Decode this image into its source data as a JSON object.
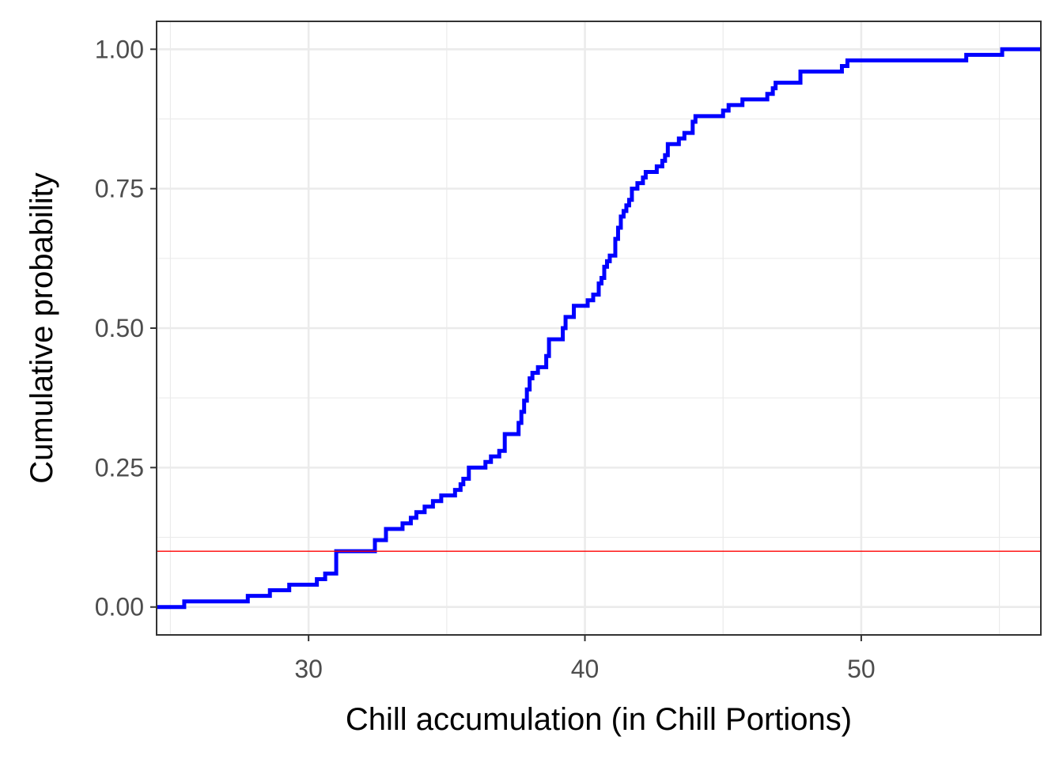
{
  "chart_data": {
    "type": "line",
    "subtype": "empirical-cdf-step",
    "title": "",
    "xlabel": "Chill accumulation (in Chill Portions)",
    "ylabel": "Cumulative probability",
    "xlim": [
      24.5,
      56.5
    ],
    "ylim": [
      -0.05,
      1.05
    ],
    "x_ticks": [
      30,
      40,
      50
    ],
    "x_tick_labels": [
      "30",
      "40",
      "50"
    ],
    "y_ticks": [
      0,
      0.25,
      0.5,
      0.75,
      1.0
    ],
    "y_tick_labels": [
      "0.00",
      "0.25",
      "0.50",
      "0.75",
      "1.00"
    ],
    "x_minor_ticks": [
      25,
      35,
      45,
      55
    ],
    "y_minor_ticks": [
      0.125,
      0.375,
      0.625,
      0.875
    ],
    "grid": true,
    "series": [
      {
        "color": "#0000ff",
        "step": "hv",
        "points": [
          [
            24.5,
            0.0
          ],
          [
            25.5,
            0.01
          ],
          [
            27.8,
            0.02
          ],
          [
            28.6,
            0.03
          ],
          [
            29.3,
            0.04
          ],
          [
            30.3,
            0.05
          ],
          [
            30.6,
            0.06
          ],
          [
            31.0,
            0.1
          ],
          [
            32.4,
            0.12
          ],
          [
            32.8,
            0.14
          ],
          [
            33.4,
            0.15
          ],
          [
            33.7,
            0.16
          ],
          [
            33.9,
            0.17
          ],
          [
            34.2,
            0.18
          ],
          [
            34.5,
            0.19
          ],
          [
            34.8,
            0.2
          ],
          [
            35.3,
            0.21
          ],
          [
            35.5,
            0.22
          ],
          [
            35.6,
            0.23
          ],
          [
            35.8,
            0.25
          ],
          [
            36.4,
            0.26
          ],
          [
            36.6,
            0.27
          ],
          [
            36.9,
            0.28
          ],
          [
            37.1,
            0.31
          ],
          [
            37.6,
            0.33
          ],
          [
            37.7,
            0.35
          ],
          [
            37.8,
            0.37
          ],
          [
            37.9,
            0.39
          ],
          [
            38.0,
            0.41
          ],
          [
            38.1,
            0.42
          ],
          [
            38.3,
            0.43
          ],
          [
            38.6,
            0.45
          ],
          [
            38.7,
            0.48
          ],
          [
            39.2,
            0.5
          ],
          [
            39.3,
            0.52
          ],
          [
            39.6,
            0.54
          ],
          [
            40.1,
            0.55
          ],
          [
            40.3,
            0.56
          ],
          [
            40.5,
            0.58
          ],
          [
            40.6,
            0.59
          ],
          [
            40.7,
            0.61
          ],
          [
            40.8,
            0.62
          ],
          [
            40.9,
            0.63
          ],
          [
            41.1,
            0.66
          ],
          [
            41.2,
            0.68
          ],
          [
            41.3,
            0.7
          ],
          [
            41.4,
            0.71
          ],
          [
            41.5,
            0.72
          ],
          [
            41.6,
            0.73
          ],
          [
            41.7,
            0.75
          ],
          [
            41.9,
            0.76
          ],
          [
            42.1,
            0.77
          ],
          [
            42.2,
            0.78
          ],
          [
            42.6,
            0.79
          ],
          [
            42.8,
            0.8
          ],
          [
            42.9,
            0.81
          ],
          [
            43.0,
            0.83
          ],
          [
            43.4,
            0.84
          ],
          [
            43.6,
            0.85
          ],
          [
            43.9,
            0.87
          ],
          [
            44.0,
            0.88
          ],
          [
            45.0,
            0.89
          ],
          [
            45.2,
            0.9
          ],
          [
            45.7,
            0.91
          ],
          [
            46.6,
            0.92
          ],
          [
            46.8,
            0.93
          ],
          [
            46.9,
            0.94
          ],
          [
            47.8,
            0.96
          ],
          [
            49.3,
            0.97
          ],
          [
            49.5,
            0.98
          ],
          [
            53.8,
            0.99
          ],
          [
            55.1,
            1.0
          ],
          [
            56.5,
            1.0
          ]
        ]
      }
    ],
    "annotations": [
      {
        "type": "hline",
        "y": 0.1,
        "color": "#ff0000"
      }
    ]
  }
}
